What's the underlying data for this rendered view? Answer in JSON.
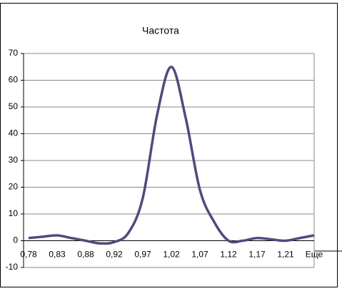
{
  "chart_data": {
    "type": "line",
    "title": "Частота",
    "categories": [
      "0,78",
      null,
      "0,83",
      null,
      "0,88",
      null,
      "0,92",
      null,
      "0,97",
      null,
      "1,02",
      null,
      "1,07",
      null,
      "1,12",
      null,
      "1,17",
      null,
      "1,21",
      null,
      "Еще"
    ],
    "series": [
      {
        "name": "Частота",
        "color": "#4c4c7e",
        "values": [
          1,
          1.5,
          2,
          1,
          0,
          -1,
          -0.5,
          3,
          16,
          47,
          65,
          46,
          19,
          7,
          0,
          0,
          1,
          0.5,
          0,
          1,
          2
        ]
      }
    ],
    "ylim": [
      -10,
      70
    ],
    "yticks": [
      -10,
      0,
      10,
      20,
      30,
      40,
      50,
      60,
      70
    ],
    "grid": true,
    "smooth": true
  }
}
